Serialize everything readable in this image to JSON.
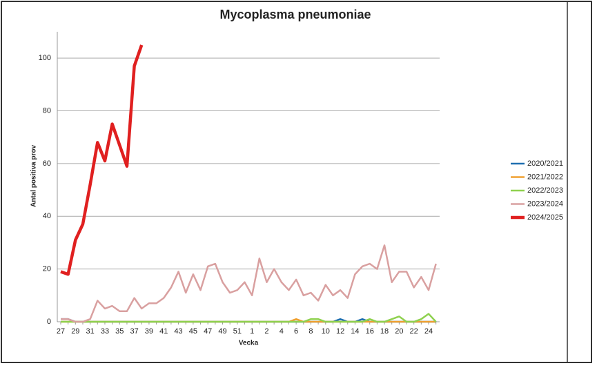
{
  "chart_data": {
    "type": "line",
    "title": "Mycoplasma pneumoniae",
    "x_label": "Vecka",
    "y_label": "Antal positiva prov",
    "categories": [
      "27",
      null,
      "29",
      null,
      "31",
      null,
      "33",
      null,
      "35",
      null,
      "37",
      null,
      "39",
      null,
      "41",
      null,
      "43",
      null,
      "45",
      null,
      "47",
      null,
      "49",
      null,
      "51",
      null,
      "1",
      null,
      "2",
      null,
      "4",
      null,
      "6",
      null,
      "8",
      null,
      "10",
      null,
      "12",
      null,
      "14",
      null,
      "16",
      null,
      "18",
      null,
      "20",
      null,
      "22",
      null,
      "24",
      null
    ],
    "ylim": [
      0,
      110
    ],
    "yticks": [
      0,
      20,
      40,
      60,
      80,
      100
    ],
    "grid": true,
    "legend": "right",
    "series": [
      {
        "name": "2020/2021",
        "color": "#1f6fb0",
        "values": [
          1,
          1,
          0,
          0,
          0,
          0,
          0,
          0,
          0,
          0,
          0,
          0,
          0,
          0,
          0,
          0,
          0,
          0,
          0,
          0,
          0,
          0,
          0,
          0,
          0,
          0,
          0,
          0,
          0,
          0,
          0,
          0,
          0,
          0,
          0,
          0,
          0,
          0,
          1,
          0,
          0,
          1,
          0,
          0,
          0,
          0,
          0,
          0,
          0,
          0,
          0,
          0
        ]
      },
      {
        "name": "2021/2022",
        "color": "#f0a030",
        "values": [
          0,
          0,
          0,
          0,
          0,
          0,
          0,
          0,
          0,
          0,
          0,
          0,
          0,
          0,
          0,
          0,
          0,
          0,
          0,
          0,
          0,
          0,
          0,
          0,
          0,
          0,
          0,
          0,
          0,
          0,
          0,
          0,
          1,
          0,
          0,
          0,
          0,
          0,
          0,
          0,
          0,
          0,
          0,
          0,
          0,
          0,
          0,
          0,
          0,
          0,
          0,
          0
        ]
      },
      {
        "name": "2022/2023",
        "color": "#8fd14f",
        "values": [
          0,
          0,
          0,
          0,
          0,
          0,
          0,
          0,
          0,
          0,
          0,
          0,
          0,
          0,
          0,
          0,
          0,
          0,
          0,
          0,
          0,
          0,
          0,
          0,
          0,
          0,
          0,
          0,
          0,
          0,
          0,
          0,
          0,
          0,
          1,
          1,
          0,
          0,
          0,
          0,
          0,
          0,
          1,
          0,
          0,
          1,
          2,
          0,
          0,
          1,
          3,
          0
        ]
      },
      {
        "name": "2023/2024",
        "color": "#d9a0a0",
        "values": [
          1,
          1,
          0,
          0,
          1,
          8,
          5,
          6,
          4,
          4,
          9,
          5,
          7,
          7,
          9,
          13,
          19,
          11,
          18,
          12,
          21,
          22,
          15,
          11,
          12,
          15,
          10,
          24,
          15,
          20,
          15,
          12,
          16,
          10,
          11,
          8,
          14,
          10,
          12,
          9,
          18,
          21,
          22,
          20,
          29,
          15,
          19,
          19,
          13,
          17,
          12,
          22
        ]
      },
      {
        "name": "2024/2025",
        "color": "#e02020",
        "values": [
          19,
          18,
          31,
          37,
          52,
          68,
          61,
          75,
          67,
          59,
          97,
          105,
          null,
          null,
          null,
          null,
          null,
          null,
          null,
          null,
          null,
          null,
          null,
          null,
          null,
          null,
          null,
          null,
          null,
          null,
          null,
          null,
          null,
          null,
          null,
          null,
          null,
          null,
          null,
          null,
          null,
          null,
          null,
          null,
          null,
          null,
          null,
          null,
          null,
          null,
          null,
          null
        ]
      }
    ]
  }
}
